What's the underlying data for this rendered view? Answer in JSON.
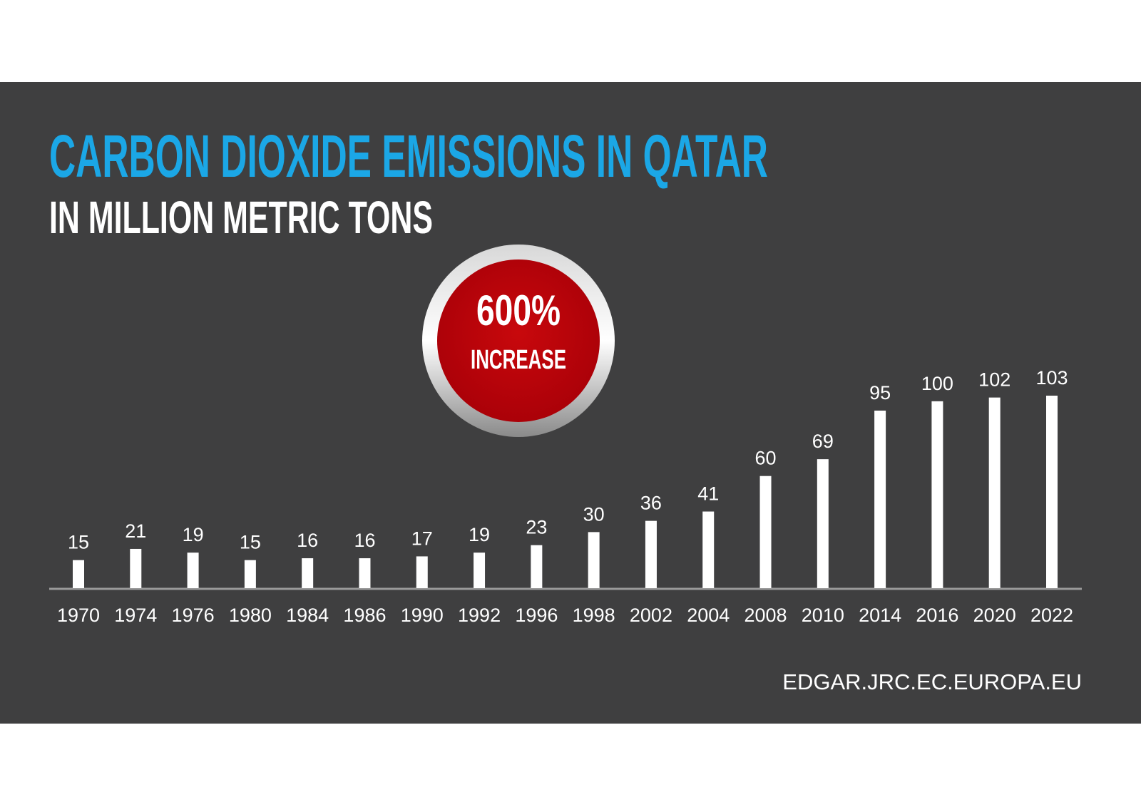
{
  "chart_data": {
    "type": "bar",
    "title": "CARBON DIOXIDE EMISSIONS IN QATAR",
    "subtitle": "IN MILLION METRIC TONS",
    "annotations": [
      "600%",
      "INCREASE"
    ],
    "source": "EDGAR.JRC.EC.EUROPA.EU",
    "categories": [
      "1970",
      "1974",
      "1976",
      "1980",
      "1984",
      "1986",
      "1990",
      "1992",
      "1996",
      "1998",
      "2002",
      "2004",
      "2008",
      "2010",
      "2014",
      "2016",
      "2020",
      "2022"
    ],
    "values": [
      15,
      21,
      19,
      15,
      16,
      16,
      17,
      19,
      23,
      30,
      36,
      41,
      60,
      69,
      95,
      100,
      102,
      103
    ],
    "color": "#ffffff"
  }
}
